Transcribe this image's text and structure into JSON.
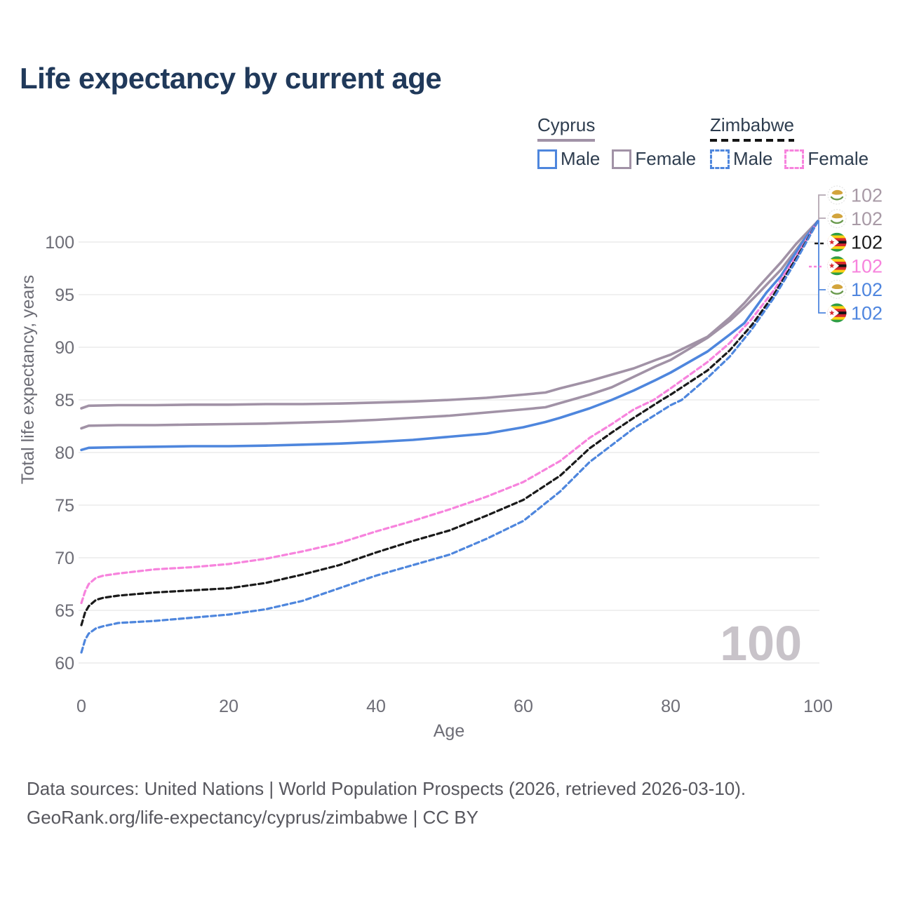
{
  "title": "Life expectancy by current age",
  "legend": {
    "groups": [
      {
        "country": "Cyprus",
        "line_style": "solid",
        "color": "#a192a6",
        "items": [
          {
            "label": "Male",
            "color": "#4e86dd"
          },
          {
            "label": "Female",
            "color": "#a192a6"
          }
        ]
      },
      {
        "country": "Zimbabwe",
        "line_style": "dashed",
        "color": "#1a1a1a",
        "items": [
          {
            "label": "Male",
            "color": "#4e86dd"
          },
          {
            "label": "Female",
            "color": "#f783dd"
          }
        ]
      }
    ]
  },
  "watermark_age": "100",
  "footer": {
    "line1": "Data sources: United Nations | World Population Prospects (2026, retrieved 2026-03-10).",
    "line2": "GeoRank.org/life-expectancy/cyprus/zimbabwe | CC BY"
  },
  "chart_data": {
    "type": "line",
    "xlabel": "Age",
    "ylabel": "Total life expectancy, years",
    "xticks": [
      0,
      20,
      40,
      60,
      80,
      100
    ],
    "yticks": [
      60,
      65,
      70,
      75,
      80,
      85,
      90,
      95,
      100
    ],
    "xlim": [
      0,
      100
    ],
    "ylim": [
      58,
      103
    ],
    "grid": "horizontal",
    "colors": {
      "grid": "#ebebeb",
      "axis_text": "#6d6d76",
      "watermark": "#c8c3c9",
      "gray_label": "#a89aa6"
    },
    "series": [
      {
        "name": "Cyprus Female",
        "country": "cyprus",
        "sex": "female",
        "color": "#a192a6",
        "dashed": false,
        "points": [
          [
            0,
            84.2
          ],
          [
            1,
            84.45
          ],
          [
            5,
            84.5
          ],
          [
            10,
            84.5
          ],
          [
            15,
            84.55
          ],
          [
            20,
            84.55
          ],
          [
            25,
            84.6
          ],
          [
            30,
            84.6
          ],
          [
            35,
            84.65
          ],
          [
            40,
            84.75
          ],
          [
            45,
            84.85
          ],
          [
            50,
            85.0
          ],
          [
            55,
            85.2
          ],
          [
            60,
            85.5
          ],
          [
            63,
            85.7
          ],
          [
            65,
            86.1
          ],
          [
            69,
            86.8
          ],
          [
            72,
            87.4
          ],
          [
            75,
            88.0
          ],
          [
            78,
            88.8
          ],
          [
            80,
            89.3
          ],
          [
            85,
            91.0
          ],
          [
            88,
            92.8
          ],
          [
            90,
            94.2
          ],
          [
            92,
            95.8
          ],
          [
            95,
            98.1
          ],
          [
            97,
            99.8
          ],
          [
            100,
            102
          ]
        ]
      },
      {
        "name": "Cyprus Both sexes",
        "country": "cyprus",
        "sex": "both",
        "color": "#a192a6",
        "dashed": false,
        "points": [
          [
            0,
            82.3
          ],
          [
            1,
            82.55
          ],
          [
            5,
            82.6
          ],
          [
            10,
            82.6
          ],
          [
            15,
            82.65
          ],
          [
            20,
            82.7
          ],
          [
            25,
            82.75
          ],
          [
            30,
            82.85
          ],
          [
            35,
            82.95
          ],
          [
            40,
            83.1
          ],
          [
            45,
            83.3
          ],
          [
            50,
            83.5
          ],
          [
            55,
            83.8
          ],
          [
            60,
            84.1
          ],
          [
            63,
            84.3
          ],
          [
            65,
            84.7
          ],
          [
            69,
            85.5
          ],
          [
            72,
            86.2
          ],
          [
            75,
            87.2
          ],
          [
            78,
            88.2
          ],
          [
            80,
            88.8
          ],
          [
            85,
            90.9
          ],
          [
            88,
            92.5
          ],
          [
            90,
            93.8
          ],
          [
            92,
            95.2
          ],
          [
            95,
            97.4
          ],
          [
            100,
            102
          ]
        ]
      },
      {
        "name": "Cyprus Male",
        "country": "cyprus",
        "sex": "male",
        "color": "#4e86dd",
        "dashed": false,
        "points": [
          [
            0,
            80.25
          ],
          [
            1,
            80.45
          ],
          [
            5,
            80.5
          ],
          [
            10,
            80.55
          ],
          [
            15,
            80.6
          ],
          [
            20,
            80.6
          ],
          [
            25,
            80.65
          ],
          [
            30,
            80.75
          ],
          [
            35,
            80.85
          ],
          [
            40,
            81.0
          ],
          [
            45,
            81.2
          ],
          [
            50,
            81.5
          ],
          [
            55,
            81.8
          ],
          [
            60,
            82.4
          ],
          [
            63,
            82.9
          ],
          [
            65,
            83.3
          ],
          [
            69,
            84.2
          ],
          [
            72,
            85.0
          ],
          [
            75,
            85.9
          ],
          [
            78,
            86.9
          ],
          [
            80,
            87.6
          ],
          [
            85,
            89.6
          ],
          [
            88,
            91.2
          ],
          [
            90,
            92.3
          ],
          [
            93,
            95.2
          ],
          [
            95,
            96.8
          ],
          [
            98,
            100.1
          ],
          [
            100,
            102
          ]
        ]
      },
      {
        "name": "Zimbabwe Female",
        "country": "zimbabwe",
        "sex": "female",
        "color": "#f783dd",
        "dashed": true,
        "points": [
          [
            0,
            65.7
          ],
          [
            0.5,
            66.8
          ],
          [
            1,
            67.5
          ],
          [
            2,
            68.1
          ],
          [
            3,
            68.3
          ],
          [
            5,
            68.5
          ],
          [
            10,
            68.9
          ],
          [
            15,
            69.1
          ],
          [
            20,
            69.4
          ],
          [
            25,
            69.9
          ],
          [
            30,
            70.6
          ],
          [
            35,
            71.4
          ],
          [
            40,
            72.5
          ],
          [
            45,
            73.5
          ],
          [
            50,
            74.6
          ],
          [
            55,
            75.8
          ],
          [
            60,
            77.2
          ],
          [
            65,
            79.2
          ],
          [
            69,
            81.4
          ],
          [
            72,
            82.7
          ],
          [
            75,
            84.1
          ],
          [
            77.7,
            85.0
          ],
          [
            80,
            86.1
          ],
          [
            85,
            88.6
          ],
          [
            88,
            90.4
          ],
          [
            91,
            92.7
          ],
          [
            94,
            95.4
          ],
          [
            97,
            98.6
          ],
          [
            100,
            102
          ]
        ]
      },
      {
        "name": "Zimbabwe Both sexes",
        "country": "zimbabwe",
        "sex": "both",
        "color": "#1a1a1a",
        "dashed": true,
        "points": [
          [
            0,
            63.6
          ],
          [
            0.5,
            64.8
          ],
          [
            1,
            65.4
          ],
          [
            2,
            66.0
          ],
          [
            3,
            66.2
          ],
          [
            5,
            66.4
          ],
          [
            10,
            66.7
          ],
          [
            15,
            66.9
          ],
          [
            20,
            67.1
          ],
          [
            25,
            67.6
          ],
          [
            30,
            68.4
          ],
          [
            35,
            69.3
          ],
          [
            40,
            70.5
          ],
          [
            45,
            71.6
          ],
          [
            50,
            72.6
          ],
          [
            55,
            74.0
          ],
          [
            60,
            75.5
          ],
          [
            65,
            77.8
          ],
          [
            69,
            80.4
          ],
          [
            72,
            81.9
          ],
          [
            75,
            83.3
          ],
          [
            78.8,
            85.0
          ],
          [
            80,
            85.5
          ],
          [
            85,
            87.8
          ],
          [
            88,
            89.7
          ],
          [
            91,
            92.1
          ],
          [
            94,
            95.0
          ],
          [
            97,
            98.4
          ],
          [
            100,
            102
          ]
        ]
      },
      {
        "name": "Zimbabwe Male",
        "country": "zimbabwe",
        "sex": "male",
        "color": "#4e86dd",
        "dashed": true,
        "points": [
          [
            0,
            61.0
          ],
          [
            0.5,
            62.2
          ],
          [
            1,
            62.8
          ],
          [
            2,
            63.3
          ],
          [
            3,
            63.5
          ],
          [
            5,
            63.8
          ],
          [
            10,
            64.0
          ],
          [
            15,
            64.3
          ],
          [
            20,
            64.6
          ],
          [
            25,
            65.1
          ],
          [
            30,
            65.9
          ],
          [
            35,
            67.1
          ],
          [
            40,
            68.3
          ],
          [
            45,
            69.3
          ],
          [
            50,
            70.3
          ],
          [
            55,
            71.8
          ],
          [
            60,
            73.5
          ],
          [
            65,
            76.3
          ],
          [
            69,
            79.1
          ],
          [
            72,
            80.7
          ],
          [
            75,
            82.3
          ],
          [
            80,
            84.5
          ],
          [
            81.5,
            85.0
          ],
          [
            85,
            87.1
          ],
          [
            88,
            89.1
          ],
          [
            91,
            91.7
          ],
          [
            94,
            94.7
          ],
          [
            97,
            98.2
          ],
          [
            100,
            102
          ]
        ]
      }
    ],
    "end_labels": [
      {
        "flag": "cyprus-flag-icon",
        "value": "102",
        "color": "#a89aa6"
      },
      {
        "flag": "cyprus-flag-icon",
        "value": "102",
        "color": "#a89aa6"
      },
      {
        "flag": "zimbabwe-flag-icon",
        "value": "102",
        "color": "#1c1c1c"
      },
      {
        "flag": "zimbabwe-flag-icon",
        "value": "102",
        "color": "#f783dd"
      },
      {
        "flag": "cyprus-flag-icon",
        "value": "102",
        "color": "#4f86df"
      },
      {
        "flag": "zimbabwe-flag-icon",
        "value": "102",
        "color": "#4f86df"
      }
    ]
  }
}
